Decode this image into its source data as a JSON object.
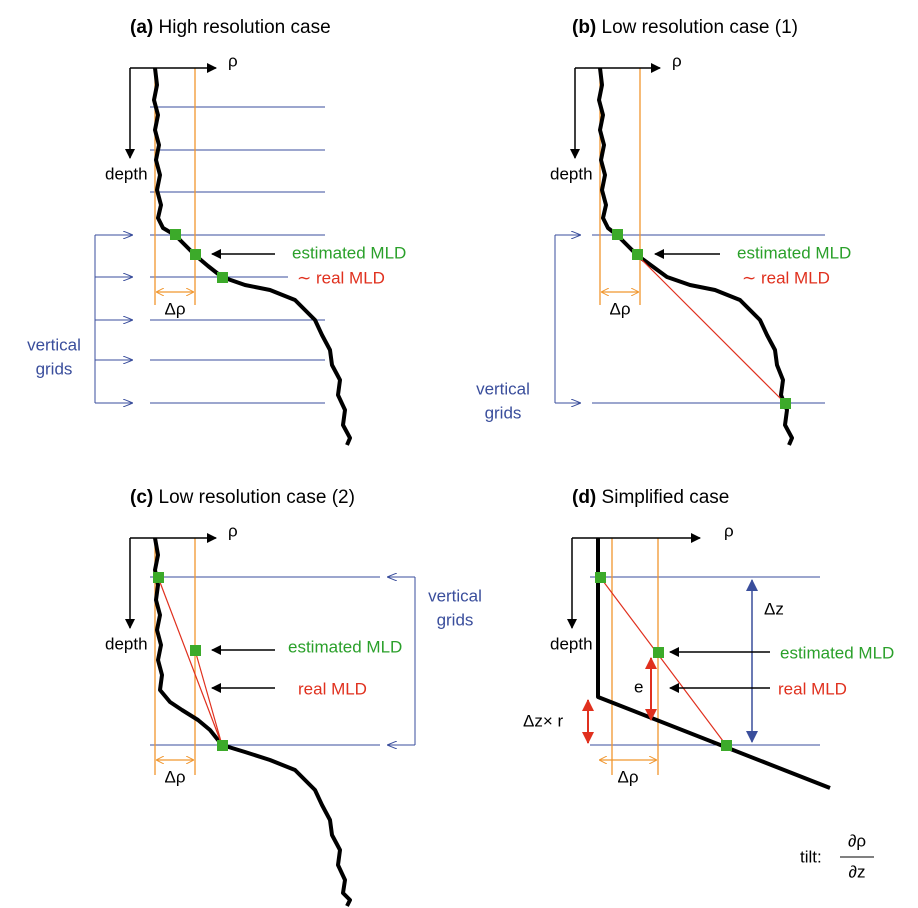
{
  "panels": [
    {
      "label": "(a)",
      "title": "High resolution case",
      "x_axis": "ρ",
      "y_axis": "depth",
      "estimated": "estimated MLD",
      "real": "∼ real MLD",
      "delta_rho": "Δρ",
      "grids": [
        "vertical",
        "grids"
      ]
    },
    {
      "label": "(b)",
      "title": "Low resolution case (1)",
      "x_axis": "ρ",
      "y_axis": "depth",
      "estimated": "estimated MLD",
      "real": "∼ real MLD",
      "delta_rho": "Δρ",
      "grids": [
        "vertical",
        "grids"
      ]
    },
    {
      "label": "(c)",
      "title": "Low resolution case (2)",
      "x_axis": "ρ",
      "y_axis": "depth",
      "estimated": "estimated MLD",
      "real": "real MLD",
      "delta_rho": "Δρ",
      "grids": [
        "vertical",
        "grids"
      ]
    },
    {
      "label": "(d)",
      "title": "Simplified case",
      "x_axis": "ρ",
      "y_axis": "depth",
      "estimated": "estimated MLD",
      "real": "real MLD",
      "delta_rho": "Δρ",
      "delta_z": "Δz",
      "error": "e",
      "offset": "Δz× r",
      "tilt": "tilt:",
      "tilt_num": "∂ρ",
      "tilt_den": "∂z"
    }
  ]
}
